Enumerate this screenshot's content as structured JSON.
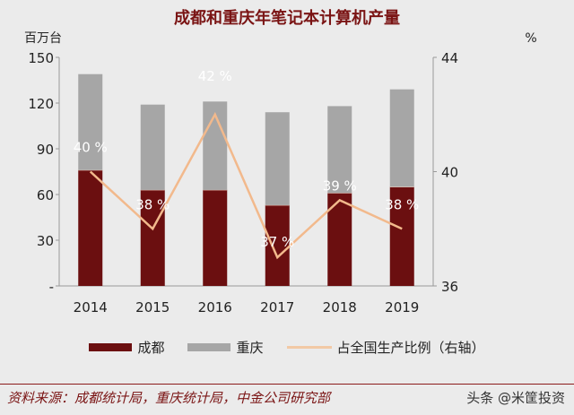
{
  "chart_data": {
    "type": "bar",
    "stacked": true,
    "title": "成都和重庆年笔记本计算机产量",
    "ylabel": "百万台",
    "y2label": "%",
    "categories": [
      "2014",
      "2015",
      "2016",
      "2017",
      "2018",
      "2019"
    ],
    "ylim": [
      0,
      150
    ],
    "yticks": [
      "-",
      "30",
      "60",
      "90",
      "120",
      "150"
    ],
    "y2lim": [
      36,
      44
    ],
    "y2ticks": [
      "36",
      "40",
      "44"
    ],
    "series": [
      {
        "name": "成都",
        "type": "bar",
        "color": "#6b0f10",
        "values": [
          76,
          63,
          63,
          53,
          61,
          65
        ]
      },
      {
        "name": "重庆",
        "type": "bar",
        "color": "#a6a6a6",
        "values": [
          63,
          56,
          58,
          61,
          57,
          64
        ]
      },
      {
        "name": "占全国生产比例（右轴）",
        "type": "line",
        "axis": "right",
        "color": "#f2b98c",
        "values": [
          40,
          38,
          42,
          37,
          39,
          38
        ],
        "labels": [
          "40 %",
          "38 %",
          "42 %",
          "37 %",
          "39 %",
          "38 %"
        ]
      }
    ],
    "grid": false,
    "legend": "bottom"
  },
  "footer": {
    "source": "资料来源：成都统计局，重庆统计局，中金公司研究部",
    "watermark": "头条 @米筐投资"
  }
}
